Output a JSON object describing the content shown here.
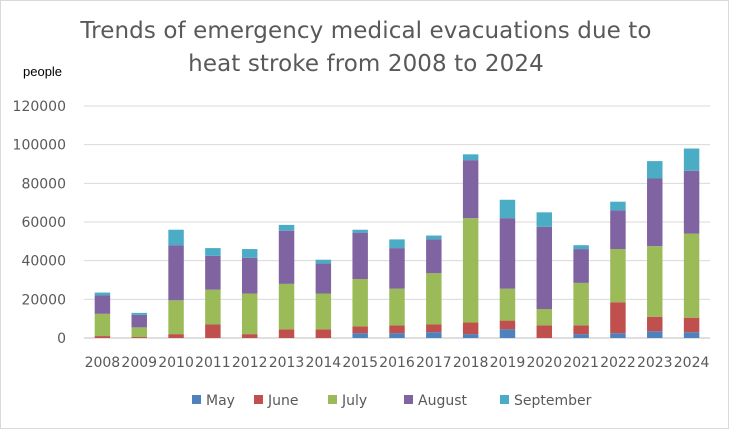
{
  "chart_data": {
    "type": "bar",
    "stacked": true,
    "title": "Trends of emergency medical evacuations due to heat stroke from 2008 to 2024",
    "title_lines": [
      "Trends of emergency medical evacuations due to",
      "heat stroke from 2008 to 2024"
    ],
    "ylabel": "people",
    "ylim": [
      0,
      120000
    ],
    "yticks": [
      0,
      20000,
      40000,
      60000,
      80000,
      100000,
      120000
    ],
    "ytick_labels": [
      "0",
      "20000",
      "40000",
      "60000",
      "80000",
      "100000",
      "120000"
    ],
    "grid": true,
    "legend_position": "bottom",
    "categories": [
      "2008",
      "2009",
      "2010",
      "2011",
      "2012",
      "2013",
      "2014",
      "2015",
      "2016",
      "2017",
      "2018",
      "2019",
      "2020",
      "2021",
      "2022",
      "2023",
      "2024"
    ],
    "series": [
      {
        "name": "May",
        "color": "#4f81bd",
        "values": [
          0,
          0,
          0,
          0,
          0,
          0,
          0,
          2500,
          2500,
          3000,
          2000,
          4500,
          0,
          2000,
          2500,
          3500,
          3000
        ]
      },
      {
        "name": "June",
        "color": "#c0504d",
        "values": [
          1000,
          500,
          2000,
          7000,
          2000,
          4500,
          4500,
          3500,
          4000,
          4000,
          6000,
          4500,
          6500,
          4500,
          16000,
          7500,
          7500
        ]
      },
      {
        "name": "July",
        "color": "#9bbb59",
        "values": [
          11500,
          5000,
          17500,
          18000,
          21000,
          23500,
          18500,
          24500,
          19000,
          26500,
          54000,
          16500,
          8500,
          22000,
          27500,
          36500,
          43500
        ]
      },
      {
        "name": "August",
        "color": "#8064a2",
        "values": [
          9500,
          6500,
          28500,
          17500,
          18500,
          27500,
          15500,
          24000,
          21000,
          17500,
          30000,
          36500,
          42500,
          17500,
          20000,
          35000,
          32500
        ]
      },
      {
        "name": "September",
        "color": "#4bacc6",
        "values": [
          1500,
          1000,
          8000,
          4000,
          4500,
          3000,
          2000,
          1500,
          4500,
          2000,
          3000,
          9500,
          7500,
          2000,
          4500,
          9000,
          11500
        ]
      }
    ]
  }
}
